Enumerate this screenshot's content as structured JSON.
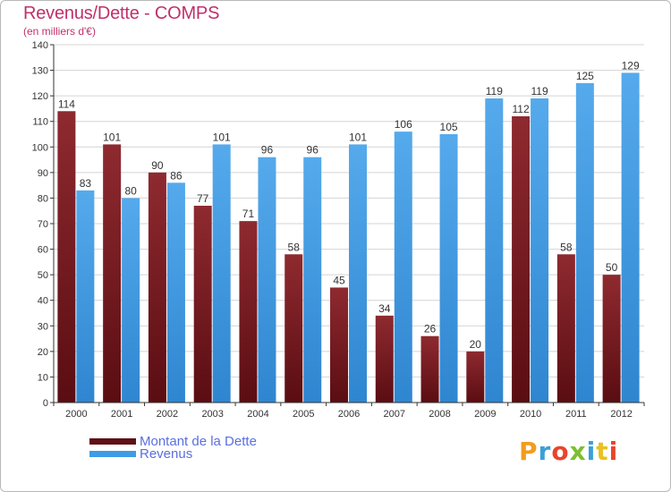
{
  "chart_data": {
    "type": "bar",
    "title": "Revenus/Dette - COMPS",
    "subtitle": "(en milliers d'€)",
    "categories": [
      "2000",
      "2001",
      "2002",
      "2003",
      "2004",
      "2005",
      "2006",
      "2007",
      "2008",
      "2009",
      "2010",
      "2011",
      "2012"
    ],
    "series": [
      {
        "name": "Montant de la Dette",
        "color": "#7a1a20",
        "values": [
          114,
          101,
          90,
          77,
          71,
          58,
          45,
          34,
          26,
          20,
          112,
          58,
          50
        ]
      },
      {
        "name": "Revenus",
        "color": "#3f9be6",
        "values": [
          83,
          80,
          86,
          101,
          96,
          96,
          101,
          106,
          105,
          119,
          119,
          125,
          129
        ]
      }
    ],
    "ylim": [
      0,
      140
    ],
    "yticks": [
      0,
      10,
      20,
      30,
      40,
      50,
      60,
      70,
      80,
      90,
      100,
      110,
      120,
      130,
      140
    ],
    "grid": true,
    "legend": "bottom-left"
  },
  "logo": {
    "text": "Proxiti",
    "colors": [
      "#f39c1f",
      "#3aa0d8",
      "#e8452c",
      "#7cbf2e",
      "#3aa0d8",
      "#e8c21f",
      "#e8452c"
    ]
  }
}
